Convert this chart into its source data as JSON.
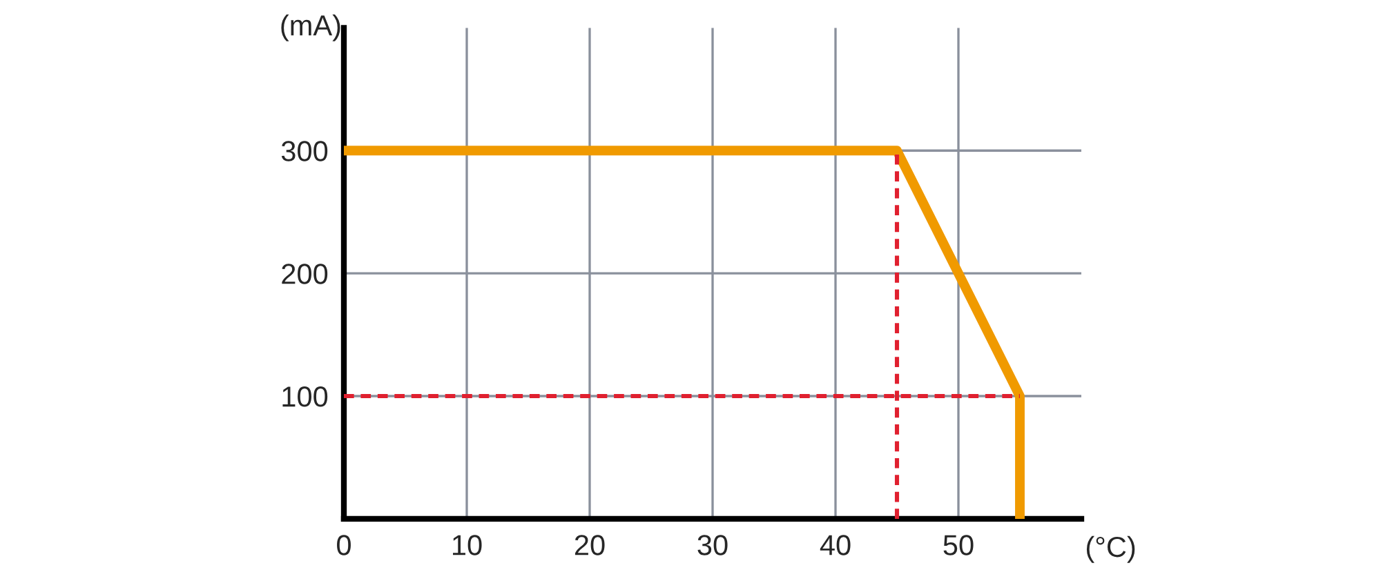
{
  "chart_data": {
    "type": "line",
    "xlabel": "(°C)",
    "ylabel": "(mA)",
    "x": [
      0,
      45,
      55,
      55
    ],
    "series": [
      {
        "color": "#f09a00",
        "values": [
          300,
          300,
          100,
          0
        ],
        "line_style": "solid"
      },
      {
        "color": "#e0202f",
        "x": [
          45,
          45
        ],
        "values": [
          0,
          300
        ],
        "line_style": "dashed"
      },
      {
        "color": "#e0202f",
        "x": [
          0,
          55
        ],
        "values": [
          100,
          100
        ],
        "line_style": "dashed"
      }
    ],
    "xlim": [
      0,
      60
    ],
    "ylim": [
      0,
      400
    ],
    "xticks": [
      0,
      10,
      20,
      30,
      40,
      50
    ],
    "yticks": [
      100,
      200,
      300
    ],
    "grid": true,
    "legend": false,
    "marker": "none"
  }
}
